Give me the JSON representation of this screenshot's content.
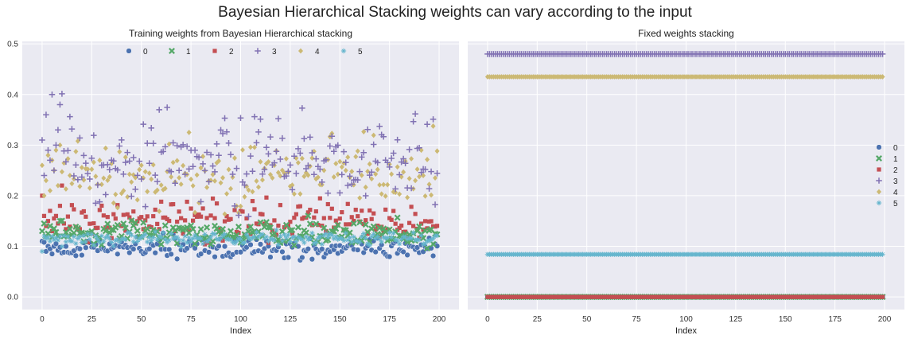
{
  "suptitle": "Bayesian Hierarchical Stacking weights can vary according to the input",
  "colors": {
    "background": "#eaeaf2",
    "grid": "#ffffff",
    "series": [
      "#4c72b0",
      "#55a868",
      "#c44e52",
      "#8172b3",
      "#ccb974",
      "#64b5cd"
    ]
  },
  "chart_data": [
    {
      "type": "scatter",
      "title": "Training weights from Bayesian Hierarchical stacking",
      "xlabel": "Index",
      "ylabel": "",
      "xlim": [
        -10,
        210
      ],
      "ylim": [
        -0.025,
        0.505
      ],
      "xticks": [
        0,
        25,
        50,
        75,
        100,
        125,
        150,
        175,
        200
      ],
      "yticks": [
        0.0,
        0.1,
        0.2,
        0.3,
        0.4,
        0.5
      ],
      "ytick_labels": [
        "0.0",
        "0.1",
        "0.2",
        "0.3",
        "0.4",
        "0.5"
      ],
      "grid": true,
      "legend": {
        "position": "top-center",
        "ncol": 6
      },
      "n_points": 200,
      "series": [
        {
          "name": "0",
          "marker": "circle",
          "center": 0.095,
          "spread": 0.01,
          "values_sample": [
            0.11,
            0.108,
            0.09,
            0.1,
            0.095,
            0.085,
            0.1,
            0.105,
            0.092,
            0.098
          ]
        },
        {
          "name": "1",
          "marker": "x",
          "center": 0.125,
          "spread": 0.012,
          "values_sample": [
            0.13,
            0.145,
            0.12,
            0.125,
            0.14,
            0.118,
            0.135,
            0.128,
            0.12,
            0.15
          ]
        },
        {
          "name": "2",
          "marker": "square",
          "center": 0.148,
          "spread": 0.02,
          "values_sample": [
            0.2,
            0.16,
            0.14,
            0.15,
            0.17,
            0.13,
            0.155,
            0.16,
            0.145,
            0.18
          ]
        },
        {
          "name": "3",
          "marker": "plus",
          "center": 0.28,
          "spread": 0.045,
          "values_sample": [
            0.31,
            0.24,
            0.36,
            0.29,
            0.27,
            0.4,
            0.25,
            0.3,
            0.33,
            0.38
          ]
        },
        {
          "name": "4",
          "marker": "diamond",
          "center": 0.245,
          "spread": 0.035,
          "values_sample": [
            0.26,
            0.2,
            0.23,
            0.28,
            0.21,
            0.27,
            0.25,
            0.29,
            0.22,
            0.3
          ]
        },
        {
          "name": "5",
          "marker": "star",
          "center": 0.115,
          "spread": 0.006,
          "values_sample": [
            0.09,
            0.12,
            0.115,
            0.118,
            0.11,
            0.12,
            0.113,
            0.117,
            0.112,
            0.12
          ]
        }
      ]
    },
    {
      "type": "scatter",
      "title": "Fixed weights stacking",
      "xlabel": "Index",
      "ylabel": "",
      "xlim": [
        -10,
        210
      ],
      "ylim": [
        -0.025,
        0.505
      ],
      "xticks": [
        0,
        25,
        50,
        75,
        100,
        125,
        150,
        175,
        200
      ],
      "yticks": [
        0.0,
        0.1,
        0.2,
        0.3,
        0.4,
        0.5
      ],
      "grid": true,
      "shared_y": true,
      "legend": {
        "position": "right-center",
        "ncol": 1
      },
      "n_points": 200,
      "series": [
        {
          "name": "0",
          "marker": "circle",
          "value": 0.0
        },
        {
          "name": "1",
          "marker": "x",
          "value": 0.0
        },
        {
          "name": "2",
          "marker": "square",
          "value": 0.0
        },
        {
          "name": "3",
          "marker": "plus",
          "value": 0.48
        },
        {
          "name": "4",
          "marker": "diamond",
          "value": 0.435
        },
        {
          "name": "5",
          "marker": "star",
          "value": 0.084
        }
      ]
    }
  ]
}
